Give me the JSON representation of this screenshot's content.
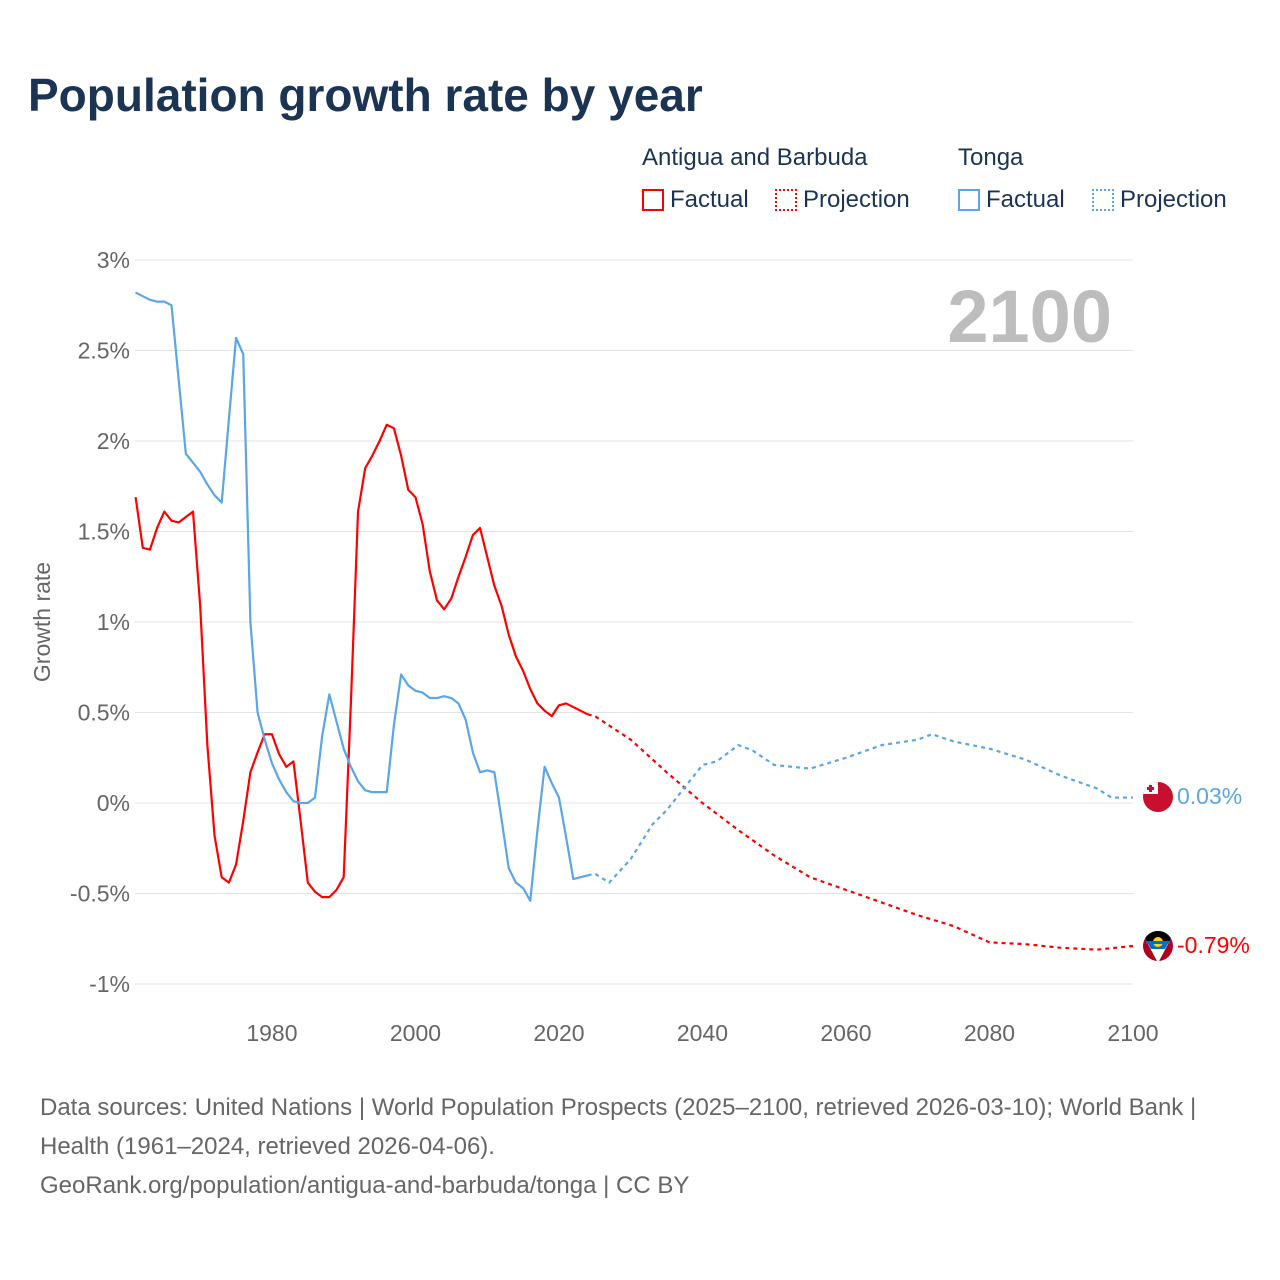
{
  "title": "Population growth rate by year",
  "legend": {
    "groups": [
      {
        "name": "Antigua and Barbuda",
        "color": "#ff0000",
        "factual": "Factual",
        "projection": "Projection"
      },
      {
        "name": "Tonga",
        "color": "#5aa6e8",
        "factual": "Factual",
        "projection": "Projection"
      }
    ]
  },
  "footer": {
    "sources": "Data sources: United Nations | World Population Prospects (2025–2100, retrieved 2026-03-10); World Bank | Health (1961–2024, retrieved 2026-04-06).",
    "link": "GeoRank.org/population/antigua-and-barbuda/tonga | CC BY"
  },
  "chart_data": {
    "type": "line",
    "title": "Population growth rate by year",
    "ylabel": "Growth rate",
    "xlabel": "",
    "year_label": "2100",
    "xlim": [
      1961,
      2100
    ],
    "ylim": [
      -1.1,
      3
    ],
    "xticks": [
      1980,
      2000,
      2020,
      2040,
      2060,
      2080,
      2100
    ],
    "xtick_labels": [
      "1980",
      "2000",
      "2020",
      "2040",
      "2060",
      "2080",
      "2100"
    ],
    "yticks": [
      3,
      2.5,
      2,
      1.5,
      1,
      0.5,
      0,
      -0.5,
      -1
    ],
    "ytick_labels": [
      "3%",
      "2.5%",
      "2%",
      "1.5%",
      "1%",
      "0.5%",
      "0%",
      "-0.5%",
      "-1%"
    ],
    "grid": true,
    "legend_position": "top-right",
    "series": [
      {
        "name": "Antigua and Barbuda",
        "color": "#ff0000",
        "end_label": "-0.79%",
        "factual_start": 1961,
        "factual": [
          1.69,
          1.41,
          1.4,
          1.52,
          1.61,
          1.56,
          1.55,
          1.58,
          1.61,
          1.09,
          0.32,
          -0.18,
          -0.41,
          -0.44,
          -0.34,
          -0.1,
          0.17,
          0.28,
          0.38,
          0.38,
          0.27,
          0.2,
          0.23,
          -0.1,
          -0.44,
          -0.49,
          -0.52,
          -0.52,
          -0.48,
          -0.41,
          0.55,
          1.61,
          1.85,
          1.92,
          2.0,
          2.09,
          2.07,
          1.92,
          1.73,
          1.69,
          1.54,
          1.28,
          1.12,
          1.07,
          1.13,
          1.25,
          1.36,
          1.48,
          1.52,
          1.36,
          1.2,
          1.09,
          0.93,
          0.81,
          0.73,
          0.63,
          0.55,
          0.51,
          0.48,
          0.54,
          0.55,
          0.53,
          0.51,
          0.49
        ],
        "projection_x": [
          2024,
          2025,
          2030,
          2035,
          2040,
          2045,
          2050,
          2055,
          2060,
          2065,
          2070,
          2075,
          2080,
          2085,
          2090,
          2095,
          2100
        ],
        "projection": [
          0.49,
          0.48,
          0.35,
          0.17,
          0.0,
          -0.15,
          -0.29,
          -0.41,
          -0.48,
          -0.55,
          -0.62,
          -0.68,
          -0.77,
          -0.78,
          -0.8,
          -0.81,
          -0.79
        ]
      },
      {
        "name": "Tonga",
        "color": "#5aa6e8",
        "end_label": "0.03%",
        "factual_start": 1961,
        "factual": [
          2.82,
          2.8,
          2.78,
          2.77,
          2.77,
          2.75,
          2.34,
          1.93,
          1.88,
          1.83,
          1.76,
          1.7,
          1.66,
          2.12,
          2.57,
          2.48,
          1.0,
          0.5,
          0.35,
          0.22,
          0.13,
          0.06,
          0.01,
          0.0,
          0.0,
          0.03,
          0.37,
          0.6,
          0.45,
          0.3,
          0.2,
          0.12,
          0.07,
          0.06,
          0.06,
          0.06,
          0.43,
          0.71,
          0.65,
          0.62,
          0.61,
          0.58,
          0.58,
          0.59,
          0.58,
          0.55,
          0.46,
          0.28,
          0.17,
          0.18,
          0.17,
          -0.09,
          -0.36,
          -0.44,
          -0.47,
          -0.54,
          -0.15,
          0.2,
          0.11,
          0.03,
          -0.19,
          -0.42,
          -0.41,
          -0.4
        ],
        "projection_x": [
          2024,
          2025,
          2027,
          2030,
          2033,
          2035,
          2038,
          2040,
          2042,
          2045,
          2047,
          2050,
          2055,
          2060,
          2065,
          2070,
          2072,
          2075,
          2080,
          2085,
          2090,
          2095,
          2097,
          2100
        ],
        "projection": [
          -0.4,
          -0.39,
          -0.44,
          -0.31,
          -0.12,
          -0.04,
          0.11,
          0.21,
          0.23,
          0.32,
          0.29,
          0.21,
          0.19,
          0.25,
          0.32,
          0.35,
          0.38,
          0.34,
          0.3,
          0.24,
          0.15,
          0.08,
          0.03,
          0.03
        ]
      }
    ]
  }
}
